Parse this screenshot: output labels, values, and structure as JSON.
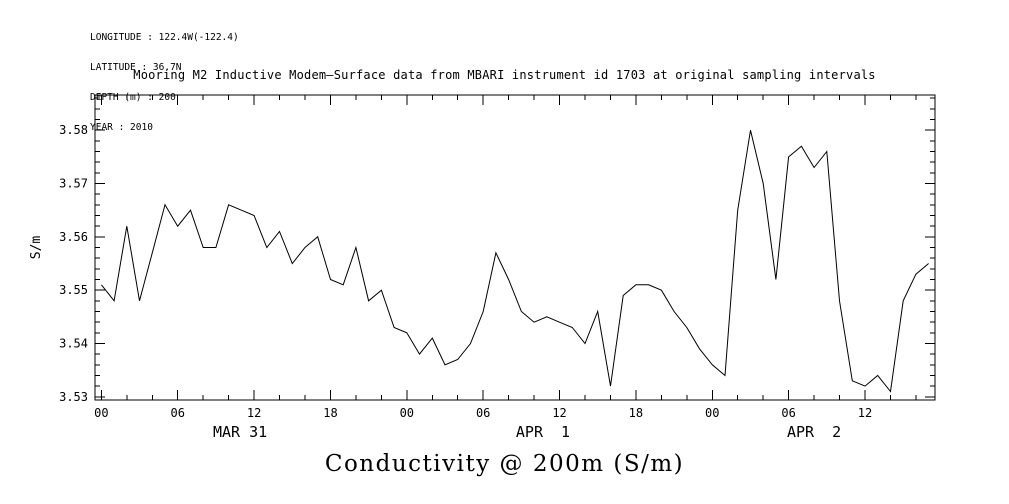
{
  "metadata": {
    "longitude": "LONGITUDE : 122.4W(-122.4)",
    "latitude": "LATITUDE : 36.7N",
    "depth": "DEPTH (m) : 200",
    "year": "YEAR : 2010"
  },
  "chart_data": {
    "type": "line",
    "title": "Mooring M2 Inductive Modem—Surface data from MBARI instrument id 1703 at original sampling intervals",
    "bottom_title": "Conductivity @ 200m (S/m)",
    "ylabel": "S/m",
    "series_name": "Conductivity @ 200m",
    "line_color": "#000000",
    "background_color": "#ffffff",
    "grid": false,
    "x_unit": "hours since 2010-03-31 00:00",
    "x_start_hour": 0,
    "x_step_hours": 1,
    "n_points": 66,
    "values": [
      3.551,
      3.548,
      3.562,
      3.548,
      3.557,
      3.566,
      3.562,
      3.565,
      3.558,
      3.558,
      3.566,
      3.565,
      3.564,
      3.558,
      3.561,
      3.555,
      3.558,
      3.56,
      3.552,
      3.551,
      3.558,
      3.548,
      3.55,
      3.543,
      3.542,
      3.538,
      3.541,
      3.536,
      3.537,
      3.54,
      3.546,
      3.557,
      3.552,
      3.546,
      3.544,
      3.545,
      3.544,
      3.543,
      3.54,
      3.546,
      3.532,
      3.549,
      3.551,
      3.551,
      3.55,
      3.546,
      3.543,
      3.539,
      3.536,
      3.534,
      3.565,
      3.58,
      3.57,
      3.552,
      3.575,
      3.577,
      3.573,
      3.576,
      3.548,
      3.533,
      3.532,
      3.534,
      3.531,
      3.548,
      3.553,
      3.555
    ],
    "xlim": [
      -0.5,
      65.5
    ],
    "ylim": [
      3.5294,
      3.5866
    ],
    "yticks": [
      {
        "value": 3.53,
        "label": "3.53"
      },
      {
        "value": 3.54,
        "label": "3.54"
      },
      {
        "value": 3.55,
        "label": "3.55"
      },
      {
        "value": 3.56,
        "label": "3.56"
      },
      {
        "value": 3.57,
        "label": "3.57"
      },
      {
        "value": 3.58,
        "label": "3.58"
      }
    ],
    "xticks": [
      {
        "hour": 0,
        "label": "00"
      },
      {
        "hour": 6,
        "label": "06"
      },
      {
        "hour": 12,
        "label": "12"
      },
      {
        "hour": 18,
        "label": "18"
      },
      {
        "hour": 24,
        "label": "00"
      },
      {
        "hour": 30,
        "label": "06"
      },
      {
        "hour": 36,
        "label": "12"
      },
      {
        "hour": 42,
        "label": "18"
      },
      {
        "hour": 48,
        "label": "00"
      },
      {
        "hour": 54,
        "label": "06"
      },
      {
        "hour": 60,
        "label": "12"
      }
    ],
    "x_minor_step": 2,
    "x_major_step": 6,
    "y_minor_step": 0.002,
    "date_labels": [
      {
        "label": "MAR 31",
        "center_hour": 10.9
      },
      {
        "label": "APR  1",
        "center_hour": 34.7
      },
      {
        "label": "APR  2",
        "center_hour": 56.0
      }
    ]
  }
}
